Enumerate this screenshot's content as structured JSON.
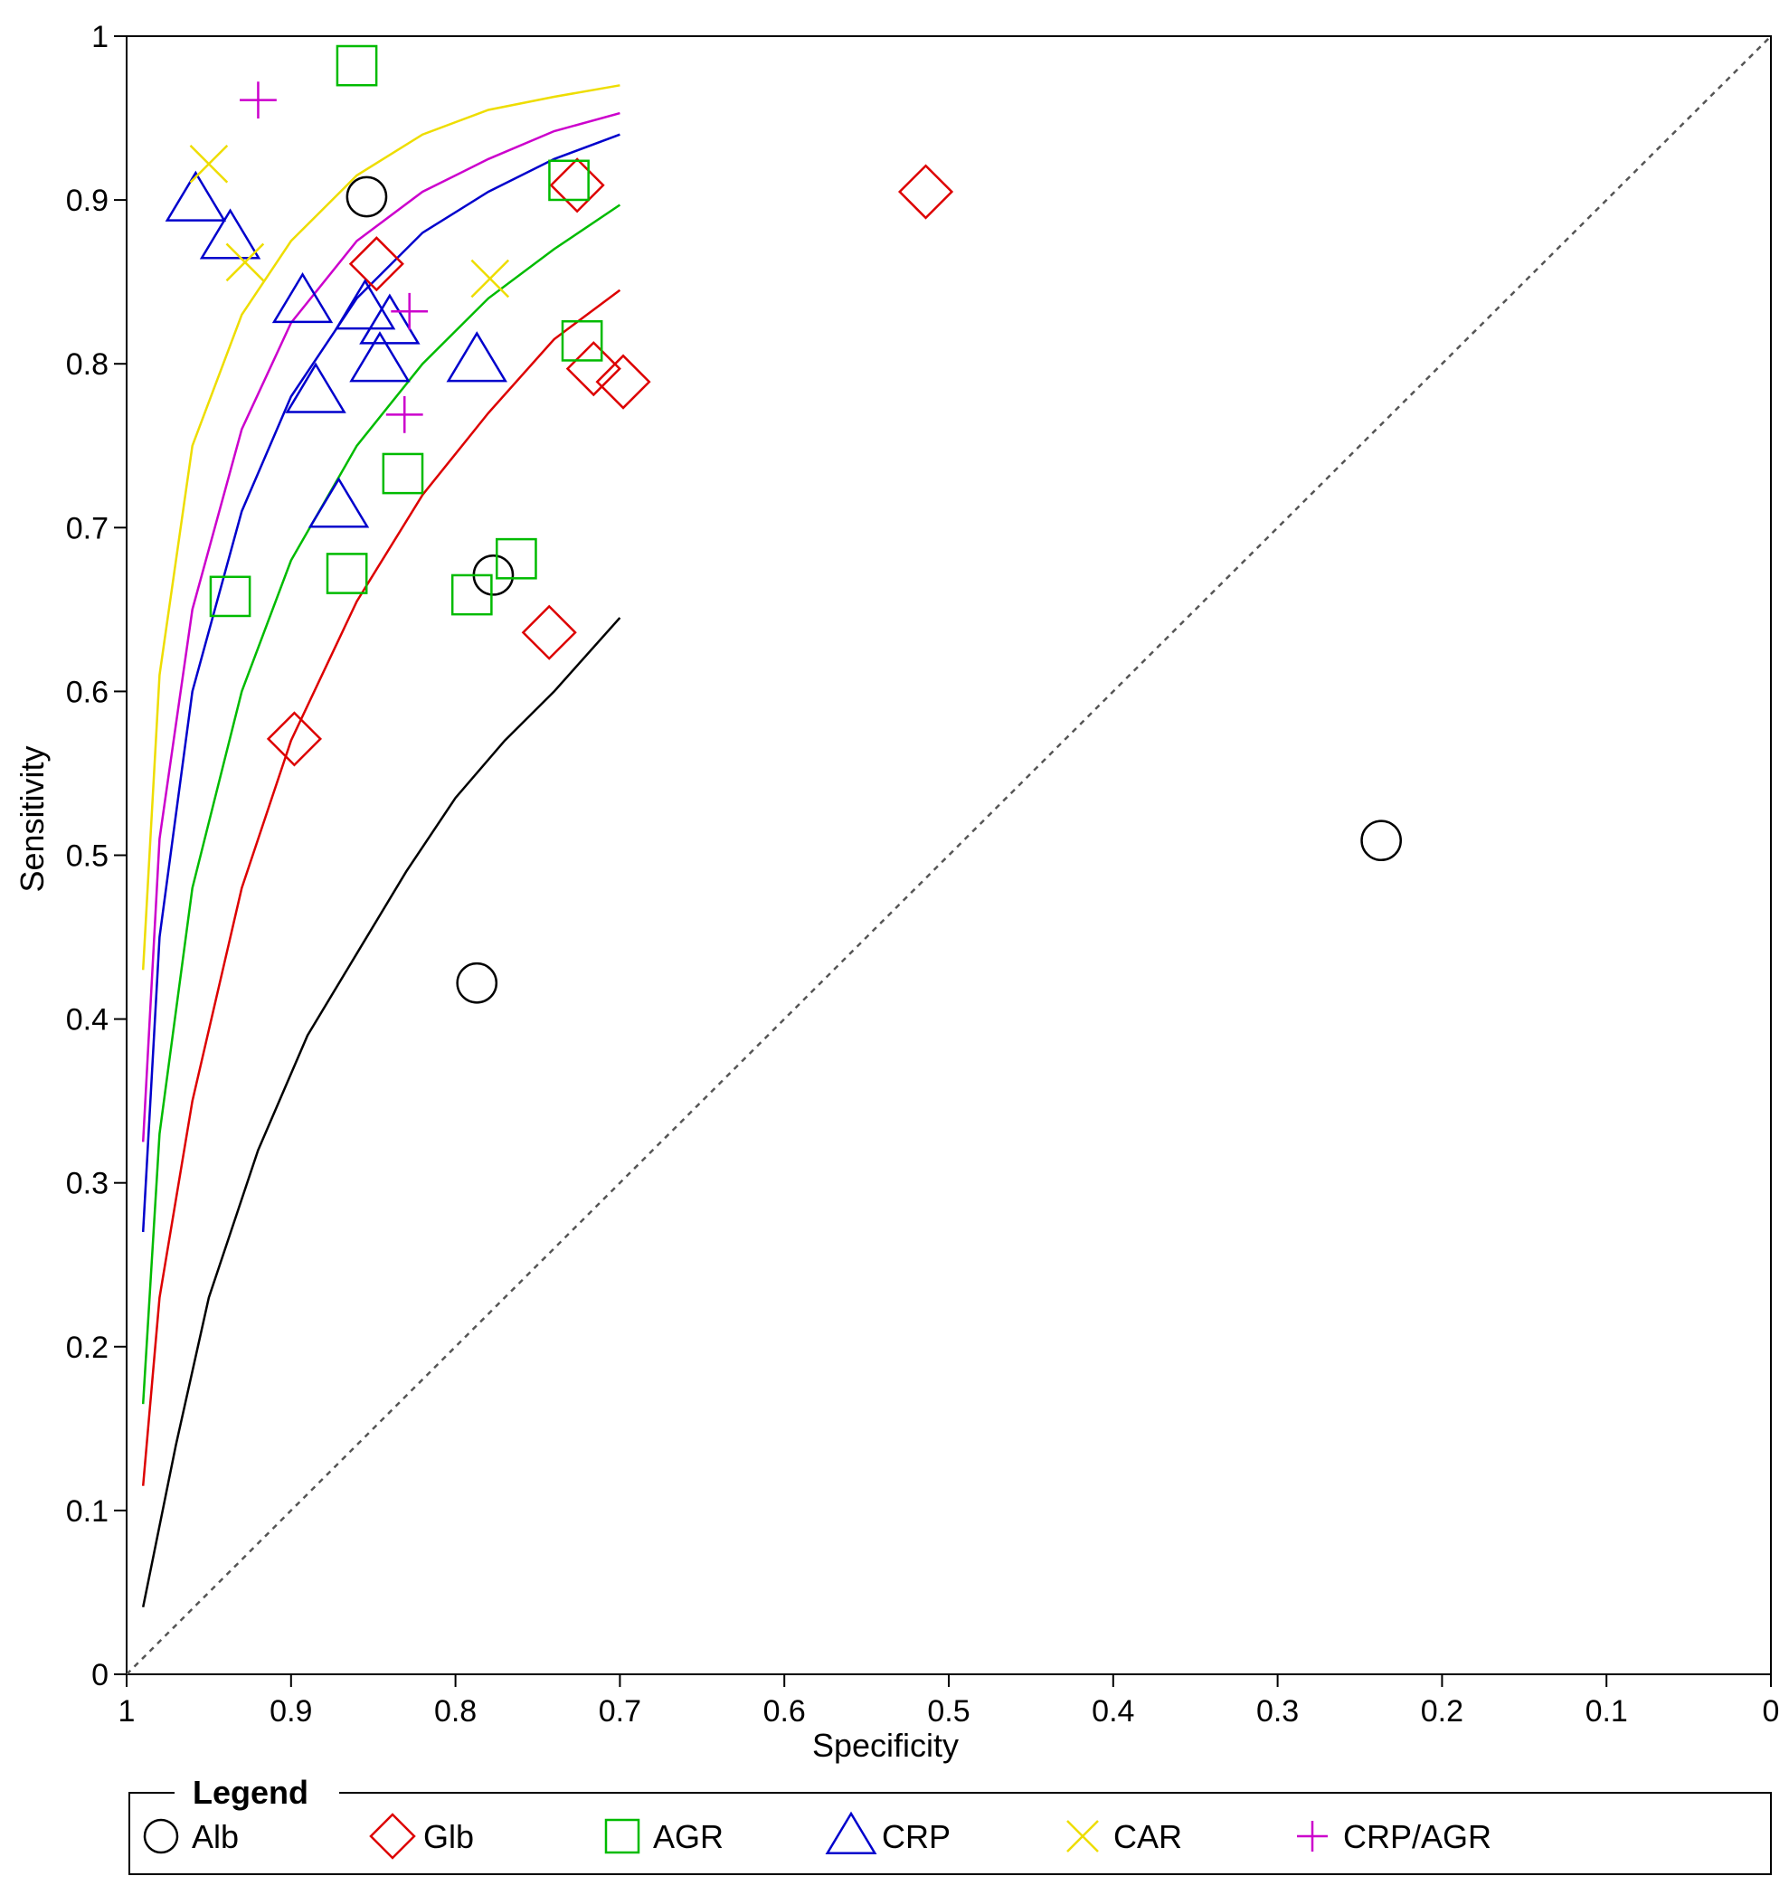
{
  "chart_data": {
    "type": "scatter",
    "title": "",
    "xlabel": "Specificity",
    "ylabel": "Sensitivity",
    "xlim": [
      1,
      0
    ],
    "ylim": [
      0,
      1
    ],
    "x_ticks": [
      "1",
      "0.9",
      "0.8",
      "0.7",
      "0.6",
      "0.5",
      "0.4",
      "0.3",
      "0.2",
      "0.1",
      "0"
    ],
    "y_ticks": [
      "0",
      "0.1",
      "0.2",
      "0.3",
      "0.4",
      "0.5",
      "0.6",
      "0.7",
      "0.8",
      "0.9",
      "1"
    ],
    "reference_line": "chance diagonal (dashed)",
    "legend_title": "Legend",
    "legend_position": "bottom",
    "series": [
      {
        "name": "Alb",
        "marker": "circle",
        "color": "#000000",
        "points": [
          [
            0.854,
            0.902
          ],
          [
            0.777,
            0.671
          ],
          [
            0.787,
            0.422
          ],
          [
            0.237,
            0.509
          ]
        ],
        "curve": [
          [
            0.99,
            0.041
          ],
          [
            0.97,
            0.14
          ],
          [
            0.95,
            0.23
          ],
          [
            0.92,
            0.32
          ],
          [
            0.89,
            0.39
          ],
          [
            0.86,
            0.44
          ],
          [
            0.83,
            0.49
          ],
          [
            0.8,
            0.535
          ],
          [
            0.77,
            0.57
          ],
          [
            0.74,
            0.6
          ],
          [
            0.7,
            0.645
          ]
        ]
      },
      {
        "name": "Glb",
        "marker": "diamond",
        "color": "#dd0000",
        "points": [
          [
            0.726,
            0.909
          ],
          [
            0.514,
            0.905
          ],
          [
            0.848,
            0.861
          ],
          [
            0.716,
            0.797
          ],
          [
            0.698,
            0.789
          ],
          [
            0.743,
            0.636
          ],
          [
            0.898,
            0.571
          ]
        ],
        "curve": [
          [
            0.99,
            0.115
          ],
          [
            0.98,
            0.23
          ],
          [
            0.96,
            0.35
          ],
          [
            0.93,
            0.48
          ],
          [
            0.9,
            0.57
          ],
          [
            0.86,
            0.655
          ],
          [
            0.82,
            0.72
          ],
          [
            0.78,
            0.77
          ],
          [
            0.74,
            0.815
          ],
          [
            0.7,
            0.845
          ]
        ]
      },
      {
        "name": "AGR",
        "marker": "square",
        "color": "#00bb00",
        "points": [
          [
            0.86,
            0.982
          ],
          [
            0.731,
            0.912
          ],
          [
            0.723,
            0.814
          ],
          [
            0.832,
            0.733
          ],
          [
            0.763,
            0.681
          ],
          [
            0.866,
            0.672
          ],
          [
            0.79,
            0.659
          ],
          [
            0.937,
            0.658
          ]
        ],
        "curve": [
          [
            0.99,
            0.165
          ],
          [
            0.98,
            0.33
          ],
          [
            0.96,
            0.48
          ],
          [
            0.93,
            0.6
          ],
          [
            0.9,
            0.68
          ],
          [
            0.86,
            0.75
          ],
          [
            0.82,
            0.8
          ],
          [
            0.78,
            0.84
          ],
          [
            0.74,
            0.87
          ],
          [
            0.7,
            0.897
          ]
        ]
      },
      {
        "name": "CRP",
        "marker": "triangle",
        "color": "#0000cc",
        "points": [
          [
            0.958,
            0.9
          ],
          [
            0.937,
            0.877
          ],
          [
            0.893,
            0.838
          ],
          [
            0.855,
            0.834
          ],
          [
            0.84,
            0.825
          ],
          [
            0.846,
            0.802
          ],
          [
            0.787,
            0.802
          ],
          [
            0.885,
            0.783
          ],
          [
            0.871,
            0.713
          ]
        ],
        "curve": [
          [
            0.99,
            0.27
          ],
          [
            0.98,
            0.45
          ],
          [
            0.96,
            0.6
          ],
          [
            0.93,
            0.71
          ],
          [
            0.9,
            0.78
          ],
          [
            0.86,
            0.84
          ],
          [
            0.82,
            0.88
          ],
          [
            0.78,
            0.905
          ],
          [
            0.74,
            0.925
          ],
          [
            0.7,
            0.94
          ]
        ]
      },
      {
        "name": "CAR",
        "marker": "x",
        "color": "#eedd00",
        "points": [
          [
            0.95,
            0.922
          ],
          [
            0.928,
            0.862
          ],
          [
            0.779,
            0.852
          ]
        ],
        "curve": [
          [
            0.99,
            0.43
          ],
          [
            0.98,
            0.61
          ],
          [
            0.96,
            0.75
          ],
          [
            0.93,
            0.83
          ],
          [
            0.9,
            0.875
          ],
          [
            0.86,
            0.915
          ],
          [
            0.82,
            0.94
          ],
          [
            0.78,
            0.955
          ],
          [
            0.74,
            0.963
          ],
          [
            0.7,
            0.97
          ]
        ]
      },
      {
        "name": "CRP/AGR",
        "marker": "plus",
        "color": "#cc00cc",
        "points": [
          [
            0.92,
            0.961
          ],
          [
            0.828,
            0.832
          ],
          [
            0.831,
            0.769
          ]
        ],
        "curve": [
          [
            0.99,
            0.325
          ],
          [
            0.98,
            0.51
          ],
          [
            0.96,
            0.65
          ],
          [
            0.93,
            0.76
          ],
          [
            0.9,
            0.825
          ],
          [
            0.86,
            0.875
          ],
          [
            0.82,
            0.905
          ],
          [
            0.78,
            0.925
          ],
          [
            0.74,
            0.942
          ],
          [
            0.7,
            0.953
          ]
        ]
      }
    ]
  }
}
